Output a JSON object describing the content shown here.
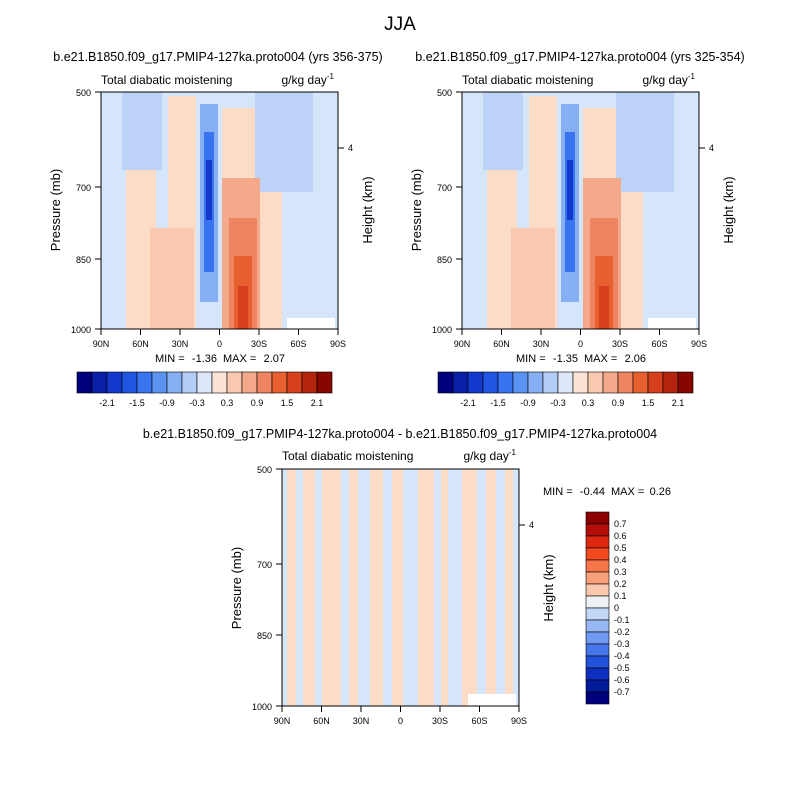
{
  "page_title": "JJA",
  "chart_data": [
    {
      "type": "heatmap",
      "title": "b.e21.B1850.f09_g17.PMIP4-127ka.proto004 (yrs 356-375)",
      "left_subtitle": "Total diabatic moistening",
      "right_subtitle": "g/kg day",
      "units_exponent": "-1",
      "ylabel": "Pressure (mb)",
      "ylabel_right": "Height (km)",
      "x_ticks": [
        "90N",
        "60N",
        "30N",
        "0",
        "30S",
        "60S",
        "90S"
      ],
      "y_ticks": [
        "500",
        "700",
        "850",
        "1000"
      ],
      "y_ticks_right": [
        "4"
      ],
      "xlim": [
        90,
        -90
      ],
      "ylim": [
        1000,
        500
      ],
      "stats": {
        "min_label": "MIN =",
        "min": "-1.36",
        "max_label": "MAX =",
        "max": "2.07"
      },
      "colorbar": {
        "orientation": "horizontal",
        "labels": [
          "-2.1",
          "-1.5",
          "-0.9",
          "-0.3",
          "0.3",
          "0.9",
          "1.5",
          "2.1"
        ]
      }
    },
    {
      "type": "heatmap",
      "title": "b.e21.B1850.f09_g17.PMIP4-127ka.proto004 (yrs 325-354)",
      "left_subtitle": "Total diabatic moistening",
      "right_subtitle": "g/kg day",
      "units_exponent": "-1",
      "ylabel": "Pressure (mb)",
      "ylabel_right": "Height (km)",
      "x_ticks": [
        "90N",
        "60N",
        "30N",
        "0",
        "30S",
        "60S",
        "90S"
      ],
      "y_ticks": [
        "500",
        "700",
        "850",
        "1000"
      ],
      "y_ticks_right": [
        "4"
      ],
      "xlim": [
        90,
        -90
      ],
      "ylim": [
        1000,
        500
      ],
      "stats": {
        "min_label": "MIN =",
        "min": "-1.35",
        "max_label": "MAX =",
        "max": "2.06"
      },
      "colorbar": {
        "orientation": "horizontal",
        "labels": [
          "-2.1",
          "-1.5",
          "-0.9",
          "-0.3",
          "0.3",
          "0.9",
          "1.5",
          "2.1"
        ]
      }
    },
    {
      "type": "heatmap",
      "title": "b.e21.B1850.f09_g17.PMIP4-127ka.proto004 - b.e21.B1850.f09_g17.PMIP4-127ka.proto004",
      "left_subtitle": "Total diabatic moistening",
      "right_subtitle": "g/kg day",
      "units_exponent": "-1",
      "ylabel": "Pressure (mb)",
      "ylabel_right": "Height (km)",
      "x_ticks": [
        "90N",
        "60N",
        "30N",
        "0",
        "30S",
        "60S",
        "90S"
      ],
      "y_ticks": [
        "500",
        "700",
        "850",
        "1000"
      ],
      "y_ticks_right": [
        "4"
      ],
      "xlim": [
        90,
        -90
      ],
      "ylim": [
        1000,
        500
      ],
      "stats": {
        "min_label": "MIN =",
        "min": "-0.44",
        "max_label": "MAX =",
        "max": "0.26"
      },
      "colorbar": {
        "orientation": "vertical",
        "labels": [
          "0.7",
          "0.6",
          "0.5",
          "0.4",
          "0.3",
          "0.2",
          "0.1",
          "0",
          "-0.1",
          "-0.2",
          "-0.3",
          "-0.4",
          "-0.5",
          "-0.6",
          "-0.7"
        ]
      }
    }
  ],
  "colors": {
    "panel_scale": [
      "#00007f",
      "#0a1fa8",
      "#1238cc",
      "#1f55e0",
      "#3874ef",
      "#5b93f2",
      "#86aff4",
      "#b4cdf6",
      "#dce8fa",
      "#fbe3d3",
      "#f8c8b0",
      "#f4a98a",
      "#ef8560",
      "#e8602f",
      "#d6401c",
      "#b3240f",
      "#870600"
    ],
    "diff_scale": [
      "#8b0000",
      "#b40e0b",
      "#de2810",
      "#f24a1e",
      "#f77649",
      "#f8a07c",
      "#fac8ad",
      "#eef1f6",
      "#c3d7f7",
      "#98b8f5",
      "#6f98f0",
      "#4776ea",
      "#2252d9",
      "#0e2fbf",
      "#001a99",
      "#00007f"
    ],
    "diff_pos": "#fbdcc6",
    "diff_neg": "#d5e5fa"
  }
}
